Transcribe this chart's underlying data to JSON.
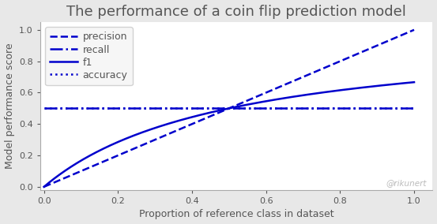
{
  "title": "The performance of a coin flip prediction model",
  "xlabel": "Proportion of reference class in dataset",
  "ylabel": "Model performance score",
  "watermark": "@rikunert",
  "color": "#0000CC",
  "fig_background": "#e8e8e8",
  "ax_background": "#ffffff",
  "xlim": [
    0.0,
    1.05
  ],
  "ylim": [
    -0.02,
    1.05
  ],
  "legend_labels": [
    "precision",
    "recall",
    "f1",
    "accuracy"
  ],
  "legend_linestyles": [
    "--",
    "-.",
    "-",
    ":"
  ],
  "title_fontsize": 13,
  "label_fontsize": 9,
  "tick_fontsize": 8,
  "linewidth": 1.8,
  "spine_color": "#aaaaaa",
  "text_color": "#555555",
  "watermark_color": "#bbbbbb"
}
